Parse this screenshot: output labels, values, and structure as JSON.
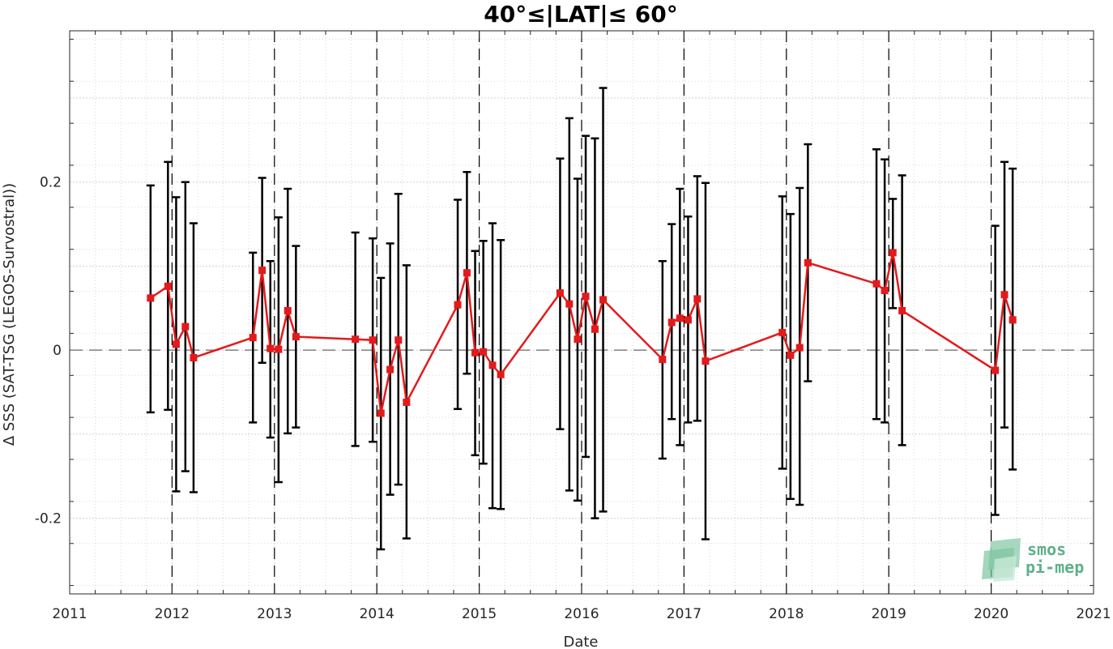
{
  "chart_data": {
    "type": "line",
    "title": "40°≤|LAT|≤ 60°",
    "xlabel": "Date",
    "ylabel": "Δ SSS (SAT-TSG (LEGOS-Survostral))",
    "xlim": [
      2011,
      2021
    ],
    "ylim": [
      -0.29,
      0.38
    ],
    "x_ticks": [
      2011,
      2012,
      2013,
      2014,
      2015,
      2016,
      2017,
      2018,
      2019,
      2020,
      2021
    ],
    "x_tick_labels": [
      "2011",
      "2012",
      "2013",
      "2014",
      "2015",
      "2016",
      "2017",
      "2018",
      "2019",
      "2020",
      "2021"
    ],
    "y_ticks": [
      -0.2,
      0,
      0.2
    ],
    "y_tick_labels": [
      "-0.2",
      "0",
      "0.2"
    ],
    "grid": true,
    "zero_line": 0,
    "year_boundaries": [
      2012,
      2013,
      2014,
      2015,
      2016,
      2017,
      2018,
      2019,
      2020
    ],
    "series": [
      {
        "color": "#e31a1c",
        "errorbar_color": "#000000",
        "x": [
          2011.79,
          2011.96,
          2012.04,
          2012.13,
          2012.21,
          2012.79,
          2012.88,
          2012.96,
          2013.04,
          2013.13,
          2013.21,
          2013.79,
          2013.96,
          2014.04,
          2014.13,
          2014.21,
          2014.29,
          2014.79,
          2014.88,
          2014.96,
          2015.04,
          2015.13,
          2015.21,
          2015.79,
          2015.88,
          2015.96,
          2016.04,
          2016.13,
          2016.21,
          2016.79,
          2016.88,
          2016.96,
          2017.04,
          2017.13,
          2017.21,
          2017.96,
          2018.04,
          2018.13,
          2018.21,
          2018.88,
          2018.96,
          2019.04,
          2019.13,
          2020.04,
          2020.13,
          2020.21
        ],
        "y": [
          0.062,
          0.076,
          0.007,
          0.028,
          -0.009,
          0.015,
          0.095,
          0.002,
          0.001,
          0.047,
          0.016,
          0.013,
          0.012,
          -0.075,
          -0.023,
          0.012,
          -0.062,
          0.054,
          0.092,
          -0.003,
          -0.002,
          -0.018,
          -0.029,
          0.068,
          0.055,
          0.013,
          0.064,
          0.025,
          0.06,
          -0.011,
          0.033,
          0.038,
          0.036,
          0.061,
          -0.013,
          0.021,
          -0.006,
          0.003,
          0.104,
          0.079,
          0.071,
          0.116,
          0.047,
          -0.024,
          0.066,
          0.036
        ],
        "err_low": [
          -0.074,
          -0.071,
          -0.168,
          -0.144,
          -0.169,
          -0.086,
          -0.015,
          -0.104,
          -0.157,
          -0.099,
          -0.092,
          -0.114,
          -0.109,
          -0.237,
          -0.172,
          -0.16,
          -0.224,
          -0.07,
          -0.028,
          -0.125,
          -0.135,
          -0.188,
          -0.189,
          -0.094,
          -0.167,
          -0.179,
          -0.127,
          -0.2,
          -0.192,
          -0.129,
          -0.082,
          -0.113,
          -0.086,
          -0.084,
          -0.225,
          -0.141,
          -0.177,
          -0.184,
          -0.037,
          -0.082,
          -0.086,
          0.05,
          -0.113,
          -0.196,
          -0.092,
          -0.142
        ],
        "err_high": [
          0.196,
          0.224,
          0.182,
          0.2,
          0.151,
          0.116,
          0.205,
          0.106,
          0.158,
          0.192,
          0.124,
          0.14,
          0.133,
          0.086,
          0.127,
          0.186,
          0.101,
          0.179,
          0.212,
          0.118,
          0.13,
          0.151,
          0.131,
          0.228,
          0.276,
          0.204,
          0.255,
          0.252,
          0.312,
          0.106,
          0.15,
          0.192,
          0.159,
          0.207,
          0.199,
          0.183,
          0.162,
          0.193,
          0.245,
          0.239,
          0.227,
          0.18,
          0.208,
          0.148,
          0.224,
          0.216
        ]
      }
    ]
  },
  "logo": {
    "line1": "smos",
    "line2": "pi-mep"
  }
}
